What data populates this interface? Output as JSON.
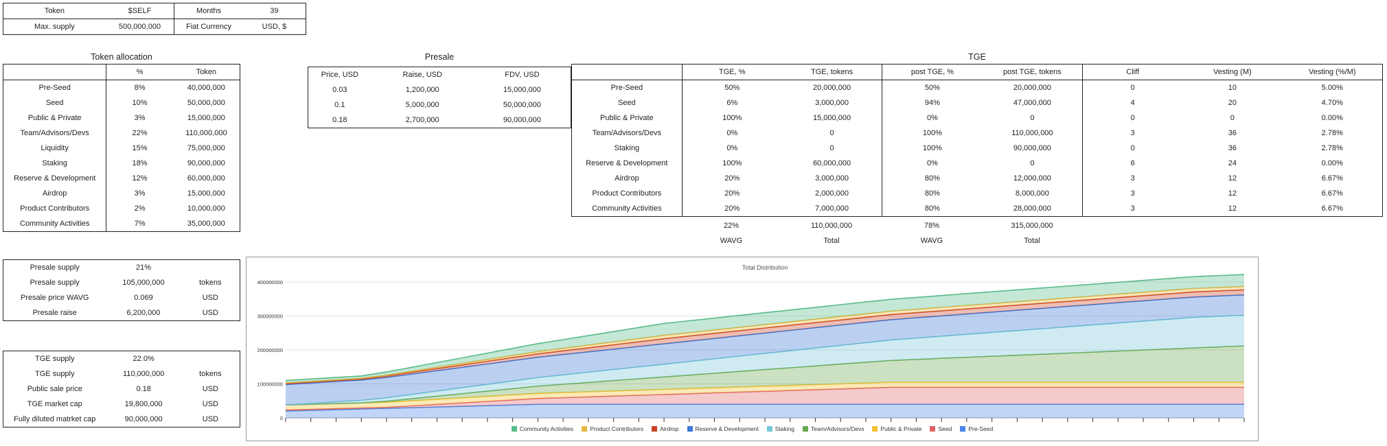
{
  "top_params": {
    "rows": [
      {
        "k1": "Token",
        "v1": "$SELF",
        "k2": "Months",
        "v2": "39"
      },
      {
        "k1": "Max. supply",
        "v1": "500,000,000",
        "k2": "Fiat Currency",
        "v2": "USD, $"
      }
    ]
  },
  "allocation": {
    "title": "Token allocation",
    "headers": [
      "",
      "%",
      "Token"
    ],
    "rows": [
      {
        "name": "Pre-Seed",
        "pct": "8%",
        "tokens": "40,000,000"
      },
      {
        "name": "Seed",
        "pct": "10%",
        "tokens": "50,000,000"
      },
      {
        "name": "Public & Private",
        "pct": "3%",
        "tokens": "15,000,000"
      },
      {
        "name": "Team/Advisors/Devs",
        "pct": "22%",
        "tokens": "110,000,000"
      },
      {
        "name": "Liquidity",
        "pct": "15%",
        "tokens": "75,000,000"
      },
      {
        "name": "Staking",
        "pct": "18%",
        "tokens": "90,000,000"
      },
      {
        "name": "Reserve & Development",
        "pct": "12%",
        "tokens": "60,000,000"
      },
      {
        "name": "Airdrop",
        "pct": "3%",
        "tokens": "15,000,000"
      },
      {
        "name": "Product Contributors",
        "pct": "2%",
        "tokens": "10,000,000"
      },
      {
        "name": "Community Activities",
        "pct": "7%",
        "tokens": "35,000,000"
      }
    ]
  },
  "presale": {
    "title": "Presale",
    "headers": [
      "Price, USD",
      "Raise, USD",
      "FDV, USD"
    ],
    "rows": [
      {
        "price": "0.03",
        "raise": "1,200,000",
        "fdv": "15,000,000"
      },
      {
        "price": "0.1",
        "raise": "5,000,000",
        "fdv": "50,000,000"
      },
      {
        "price": "0.18",
        "raise": "2,700,000",
        "fdv": "90,000,000"
      }
    ]
  },
  "tge": {
    "title": "TGE",
    "headers": [
      "",
      "TGE, %",
      "TGE, tokens",
      "post TGE, %",
      "post TGE, tokens",
      "Cliff",
      "Vesting (M)",
      "Vesting (%/M)"
    ],
    "rows": [
      {
        "name": "Pre-Seed",
        "tge_pct": "50%",
        "tge_tokens": "20,000,000",
        "post_pct": "50%",
        "post_tokens": "20,000,000",
        "cliff": "0",
        "vest_m": "10",
        "vest_pm": "5.00%"
      },
      {
        "name": "Seed",
        "tge_pct": "6%",
        "tge_tokens": "3,000,000",
        "post_pct": "94%",
        "post_tokens": "47,000,000",
        "cliff": "4",
        "vest_m": "20",
        "vest_pm": "4.70%"
      },
      {
        "name": "Public & Private",
        "tge_pct": "100%",
        "tge_tokens": "15,000,000",
        "post_pct": "0%",
        "post_tokens": "0",
        "cliff": "0",
        "vest_m": "0",
        "vest_pm": "0.00%"
      },
      {
        "name": "Team/Advisors/Devs",
        "tge_pct": "0%",
        "tge_tokens": "0",
        "post_pct": "100%",
        "post_tokens": "110,000,000",
        "cliff": "3",
        "vest_m": "36",
        "vest_pm": "2.78%"
      },
      {
        "name": "Staking",
        "tge_pct": "0%",
        "tge_tokens": "0",
        "post_pct": "100%",
        "post_tokens": "90,000,000",
        "cliff": "0",
        "vest_m": "36",
        "vest_pm": "2.78%"
      },
      {
        "name": "Reserve & Development",
        "tge_pct": "100%",
        "tge_tokens": "60,000,000",
        "post_pct": "0%",
        "post_tokens": "0",
        "cliff": "6",
        "vest_m": "24",
        "vest_pm": "0.00%"
      },
      {
        "name": "Airdrop",
        "tge_pct": "20%",
        "tge_tokens": "3,000,000",
        "post_pct": "80%",
        "post_tokens": "12,000,000",
        "cliff": "3",
        "vest_m": "12",
        "vest_pm": "6.67%"
      },
      {
        "name": "Product Contributors",
        "tge_pct": "20%",
        "tge_tokens": "2,000,000",
        "post_pct": "80%",
        "post_tokens": "8,000,000",
        "cliff": "3",
        "vest_m": "12",
        "vest_pm": "6.67%"
      },
      {
        "name": "Community Activities",
        "tge_pct": "20%",
        "tge_tokens": "7,000,000",
        "post_pct": "80%",
        "post_tokens": "28,000,000",
        "cliff": "3",
        "vest_m": "12",
        "vest_pm": "6.67%"
      }
    ],
    "totals": {
      "tge_pct": "22%",
      "tge_tokens": "110,000,000",
      "post_pct": "78%",
      "post_tokens": "315,000,000"
    },
    "totals_labels": {
      "tge_pct": "WAVG",
      "tge_tokens": "Total",
      "post_pct": "WAVG",
      "post_tokens": "Total"
    }
  },
  "presale_summary": {
    "rows": [
      {
        "label": "Presale supply",
        "value": "21%",
        "unit": ""
      },
      {
        "label": "Presale supply",
        "value": "105,000,000",
        "unit": "tokens"
      },
      {
        "label": "Presale price WAVG",
        "value": "0.069",
        "unit": "USD"
      },
      {
        "label": "Presale raise",
        "value": "6,200,000",
        "unit": "USD"
      }
    ]
  },
  "tge_summary": {
    "rows": [
      {
        "label": "TGE supply",
        "value": "22.0%",
        "unit": ""
      },
      {
        "label": "TGE supply",
        "value": "110,000,000",
        "unit": "tokens"
      },
      {
        "label": "Public sale price",
        "value": "0.18",
        "unit": "USD"
      },
      {
        "label": "TGE market cap",
        "value": "19,800,000",
        "unit": "USD"
      },
      {
        "label": "Fully diluted matrket cap",
        "value": "90,000,000",
        "unit": "USD"
      }
    ]
  },
  "chart_data": {
    "type": "area",
    "stacked": true,
    "title": "Total Distribution",
    "xlabel": "",
    "ylabel": "",
    "x": [
      0,
      1,
      2,
      3,
      4,
      5,
      6,
      7,
      8,
      9,
      10,
      11,
      12,
      13,
      14,
      15,
      16,
      17,
      18,
      19,
      20,
      21,
      22,
      23,
      24,
      25,
      26,
      27,
      28,
      29,
      30,
      31,
      32,
      33,
      34,
      35,
      36,
      37,
      38
    ],
    "ylim": [
      0,
      400000000
    ],
    "yticks": [
      "0",
      "100000000",
      "200000000",
      "300000000",
      "400000000"
    ],
    "grid": true,
    "legend_position": "bottom",
    "series": [
      {
        "name": "Pre-Seed",
        "color": "#4a86e8",
        "values": [
          20000000,
          22000000,
          24000000,
          26000000,
          28000000,
          30000000,
          32000000,
          34000000,
          36000000,
          38000000,
          40000000,
          40000000,
          40000000,
          40000000,
          40000000,
          40000000,
          40000000,
          40000000,
          40000000,
          40000000,
          40000000,
          40000000,
          40000000,
          40000000,
          40000000,
          40000000,
          40000000,
          40000000,
          40000000,
          40000000,
          40000000,
          40000000,
          40000000,
          40000000,
          40000000,
          40000000,
          40000000,
          40000000,
          40000000
        ]
      },
      {
        "name": "Seed",
        "color": "#e06666",
        "values": [
          3000000,
          3000000,
          3000000,
          3000000,
          3000000,
          5350000,
          7700000,
          10050000,
          12400000,
          14750000,
          17100000,
          19450000,
          21800000,
          24150000,
          26500000,
          28850000,
          31200000,
          33550000,
          35900000,
          38250000,
          40600000,
          42950000,
          45300000,
          47650000,
          50000000,
          50000000,
          50000000,
          50000000,
          50000000,
          50000000,
          50000000,
          50000000,
          50000000,
          50000000,
          50000000,
          50000000,
          50000000,
          50000000,
          50000000
        ]
      },
      {
        "name": "Public & Private",
        "color": "#f1c232",
        "values": [
          15000000,
          15000000,
          15000000,
          15000000,
          15000000,
          15000000,
          15000000,
          15000000,
          15000000,
          15000000,
          15000000,
          15000000,
          15000000,
          15000000,
          15000000,
          15000000,
          15000000,
          15000000,
          15000000,
          15000000,
          15000000,
          15000000,
          15000000,
          15000000,
          15000000,
          15000000,
          15000000,
          15000000,
          15000000,
          15000000,
          15000000,
          15000000,
          15000000,
          15000000,
          15000000,
          15000000,
          15000000,
          15000000,
          15000000
        ]
      },
      {
        "name": "Team/Advisors/Devs",
        "color": "#6aa84f",
        "values": [
          0,
          0,
          0,
          0,
          3055556,
          6111111,
          9166667,
          12222222,
          15277778,
          18333333,
          21388889,
          24444444,
          27500000,
          30555556,
          33611111,
          36666667,
          39722222,
          42777778,
          45833333,
          48888889,
          51944444,
          55000000,
          58055556,
          61111111,
          64166667,
          67222222,
          70277778,
          73333333,
          76388889,
          79444444,
          82500000,
          85555556,
          88611111,
          91666667,
          94722222,
          97777778,
          100833333,
          103888889,
          106944444
        ]
      },
      {
        "name": "Staking",
        "color": "#76c7d6",
        "values": [
          0,
          2500000,
          5000000,
          7500000,
          10000000,
          12500000,
          15000000,
          17500000,
          20000000,
          22500000,
          25000000,
          27500000,
          30000000,
          32500000,
          35000000,
          37500000,
          40000000,
          42500000,
          45000000,
          47500000,
          50000000,
          52500000,
          55000000,
          57500000,
          60000000,
          62500000,
          65000000,
          67500000,
          70000000,
          72500000,
          75000000,
          77500000,
          80000000,
          82500000,
          85000000,
          87500000,
          90000000,
          90000000,
          90000000
        ]
      },
      {
        "name": "Reserve & Development",
        "color": "#3c78d8",
        "values": [
          60000000,
          60000000,
          60000000,
          60000000,
          60000000,
          60000000,
          60000000,
          60000000,
          60000000,
          60000000,
          60000000,
          60000000,
          60000000,
          60000000,
          60000000,
          60000000,
          60000000,
          60000000,
          60000000,
          60000000,
          60000000,
          60000000,
          60000000,
          60000000,
          60000000,
          60000000,
          60000000,
          60000000,
          60000000,
          60000000,
          60000000,
          60000000,
          60000000,
          60000000,
          60000000,
          60000000,
          60000000,
          60000000,
          60000000
        ]
      },
      {
        "name": "Airdrop",
        "color": "#cc4125",
        "values": [
          3000000,
          3000000,
          3000000,
          3000000,
          4000000,
          5000000,
          6000000,
          7000000,
          8000000,
          9000000,
          10000000,
          11000000,
          12000000,
          13000000,
          14000000,
          15000000,
          15000000,
          15000000,
          15000000,
          15000000,
          15000000,
          15000000,
          15000000,
          15000000,
          15000000,
          15000000,
          15000000,
          15000000,
          15000000,
          15000000,
          15000000,
          15000000,
          15000000,
          15000000,
          15000000,
          15000000,
          15000000,
          15000000,
          15000000
        ]
      },
      {
        "name": "Product Contributors",
        "color": "#e6b63d",
        "values": [
          2000000,
          2000000,
          2000000,
          2000000,
          2666667,
          3333333,
          4000000,
          4666667,
          5333333,
          6000000,
          6666667,
          7333333,
          8000000,
          8666667,
          9333333,
          10000000,
          10000000,
          10000000,
          10000000,
          10000000,
          10000000,
          10000000,
          10000000,
          10000000,
          10000000,
          10000000,
          10000000,
          10000000,
          10000000,
          10000000,
          10000000,
          10000000,
          10000000,
          10000000,
          10000000,
          10000000,
          10000000,
          10000000,
          10000000
        ]
      },
      {
        "name": "Community Activities",
        "color": "#57bb8a",
        "values": [
          7000000,
          7000000,
          7000000,
          7000000,
          9333333,
          11666667,
          14000000,
          16333333,
          18666667,
          21000000,
          23333333,
          25666667,
          28000000,
          30333333,
          32666667,
          35000000,
          35000000,
          35000000,
          35000000,
          35000000,
          35000000,
          35000000,
          35000000,
          35000000,
          35000000,
          35000000,
          35000000,
          35000000,
          35000000,
          35000000,
          35000000,
          35000000,
          35000000,
          35000000,
          35000000,
          35000000,
          35000000,
          35000000,
          35000000
        ]
      }
    ],
    "legend_order": [
      "Community Activities",
      "Product Contributors",
      "Airdrop",
      "Reserve & Development",
      "Staking",
      "Team/Advisors/Devs",
      "Public & Private",
      "Seed",
      "Pre-Seed"
    ]
  }
}
